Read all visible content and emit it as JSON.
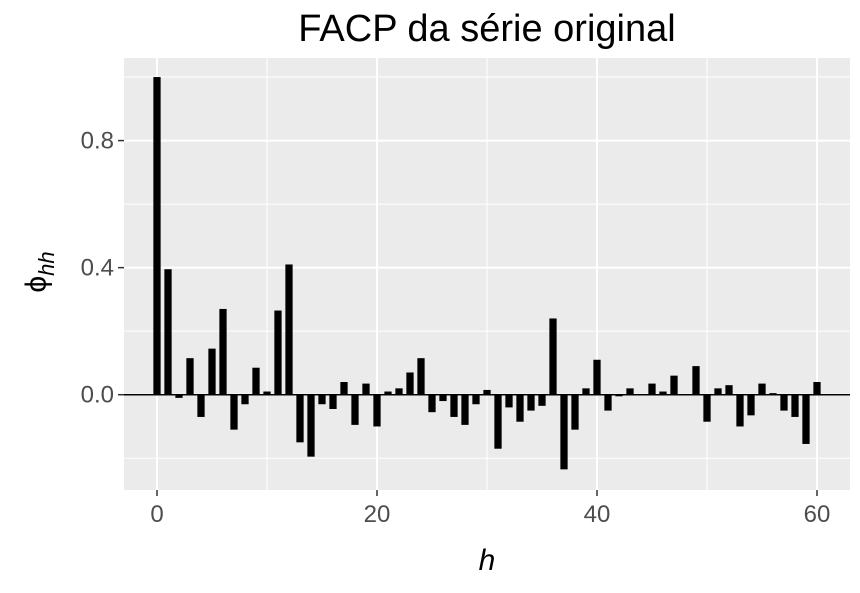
{
  "chart_data": {
    "type": "bar",
    "title": "FACP da série original",
    "xlabel": "h",
    "ylabel": "ϕ",
    "ylabel_subscript": "hh",
    "xlim": [
      -3,
      63
    ],
    "ylim": [
      -0.3,
      1.06
    ],
    "x_ticks": [
      0,
      20,
      40,
      60
    ],
    "x_tick_labels": [
      "0",
      "20",
      "40",
      "60"
    ],
    "y_ticks": [
      0.0,
      0.4,
      0.8
    ],
    "y_tick_labels": [
      "0.0",
      "0.4",
      "0.8"
    ],
    "grid": true,
    "colors": {
      "panel": "#ebebeb",
      "grid": "#ffffff",
      "bar": "#000000",
      "zero_line": "#000000"
    },
    "x": [
      0,
      1,
      2,
      3,
      4,
      5,
      6,
      7,
      8,
      9,
      10,
      11,
      12,
      13,
      14,
      15,
      16,
      17,
      18,
      19,
      20,
      21,
      22,
      23,
      24,
      25,
      26,
      27,
      28,
      29,
      30,
      31,
      32,
      33,
      34,
      35,
      36,
      37,
      38,
      39,
      40,
      41,
      42,
      43,
      44,
      45,
      46,
      47,
      48,
      49,
      50,
      51,
      52,
      53,
      54,
      55,
      56,
      57,
      58,
      59,
      60
    ],
    "values": [
      1.0,
      0.395,
      -0.01,
      0.115,
      -0.07,
      0.145,
      0.27,
      -0.11,
      -0.03,
      0.085,
      0.01,
      0.265,
      0.41,
      -0.15,
      -0.195,
      -0.03,
      -0.045,
      0.04,
      -0.095,
      0.035,
      -0.1,
      0.01,
      0.02,
      0.07,
      0.115,
      -0.055,
      -0.02,
      -0.07,
      -0.095,
      -0.03,
      0.015,
      -0.17,
      -0.04,
      -0.085,
      -0.05,
      -0.035,
      0.24,
      -0.235,
      -0.11,
      0.02,
      0.11,
      -0.05,
      -0.005,
      0.02,
      0.0,
      0.035,
      0.01,
      0.06,
      0.0,
      0.09,
      -0.085,
      0.02,
      0.03,
      -0.1,
      -0.065,
      0.035,
      0.005,
      -0.05,
      -0.07,
      -0.155,
      0.04
    ]
  }
}
